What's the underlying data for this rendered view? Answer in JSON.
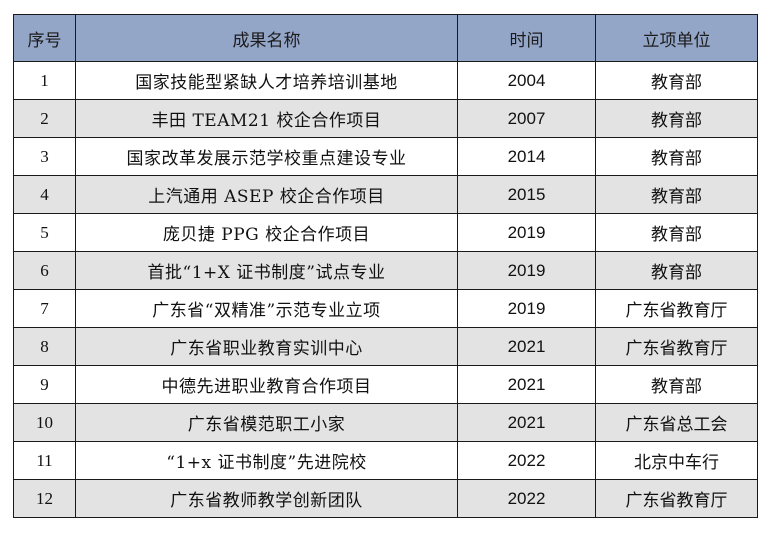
{
  "table": {
    "headers": {
      "no": "序号",
      "name": "成果名称",
      "year": "时间",
      "unit": "立项单位"
    },
    "rows": [
      {
        "no": "1",
        "name": "国家技能型紧缺人才培养培训基地",
        "year": "2004",
        "unit": "教育部"
      },
      {
        "no": "2",
        "name": "丰田 TEAM21 校企合作项目",
        "year": "2007",
        "unit": "教育部"
      },
      {
        "no": "3",
        "name": "国家改革发展示范学校重点建设专业",
        "year": "2014",
        "unit": "教育部"
      },
      {
        "no": "4",
        "name": "上汽通用 ASEP 校企合作项目",
        "year": "2015",
        "unit": "教育部"
      },
      {
        "no": "5",
        "name": "庞贝捷 PPG 校企合作项目",
        "year": "2019",
        "unit": "教育部"
      },
      {
        "no": "6",
        "name": "首批“1+X 证书制度”试点专业",
        "year": "2019",
        "unit": "教育部"
      },
      {
        "no": "7",
        "name": "广东省“双精准”示范专业立项",
        "year": "2019",
        "unit": "广东省教育厅"
      },
      {
        "no": "8",
        "name": "广东省职业教育实训中心",
        "year": "2021",
        "unit": "广东省教育厅"
      },
      {
        "no": "9",
        "name": "中德先进职业教育合作项目",
        "year": "2021",
        "unit": "教育部"
      },
      {
        "no": "10",
        "name": "广东省模范职工小家",
        "year": "2021",
        "unit": "广东省总工会"
      },
      {
        "no": "11",
        "name": "“1+x 证书制度”先进院校",
        "year": "2022",
        "unit": "北京中车行"
      },
      {
        "no": "12",
        "name": "广东省教师教学创新团队",
        "year": "2022",
        "unit": "广东省教育厅"
      }
    ]
  },
  "colors": {
    "header_bg": "#94a6c8",
    "stripe_bg": "#e3e3e3",
    "border": "#1a1a1a"
  }
}
